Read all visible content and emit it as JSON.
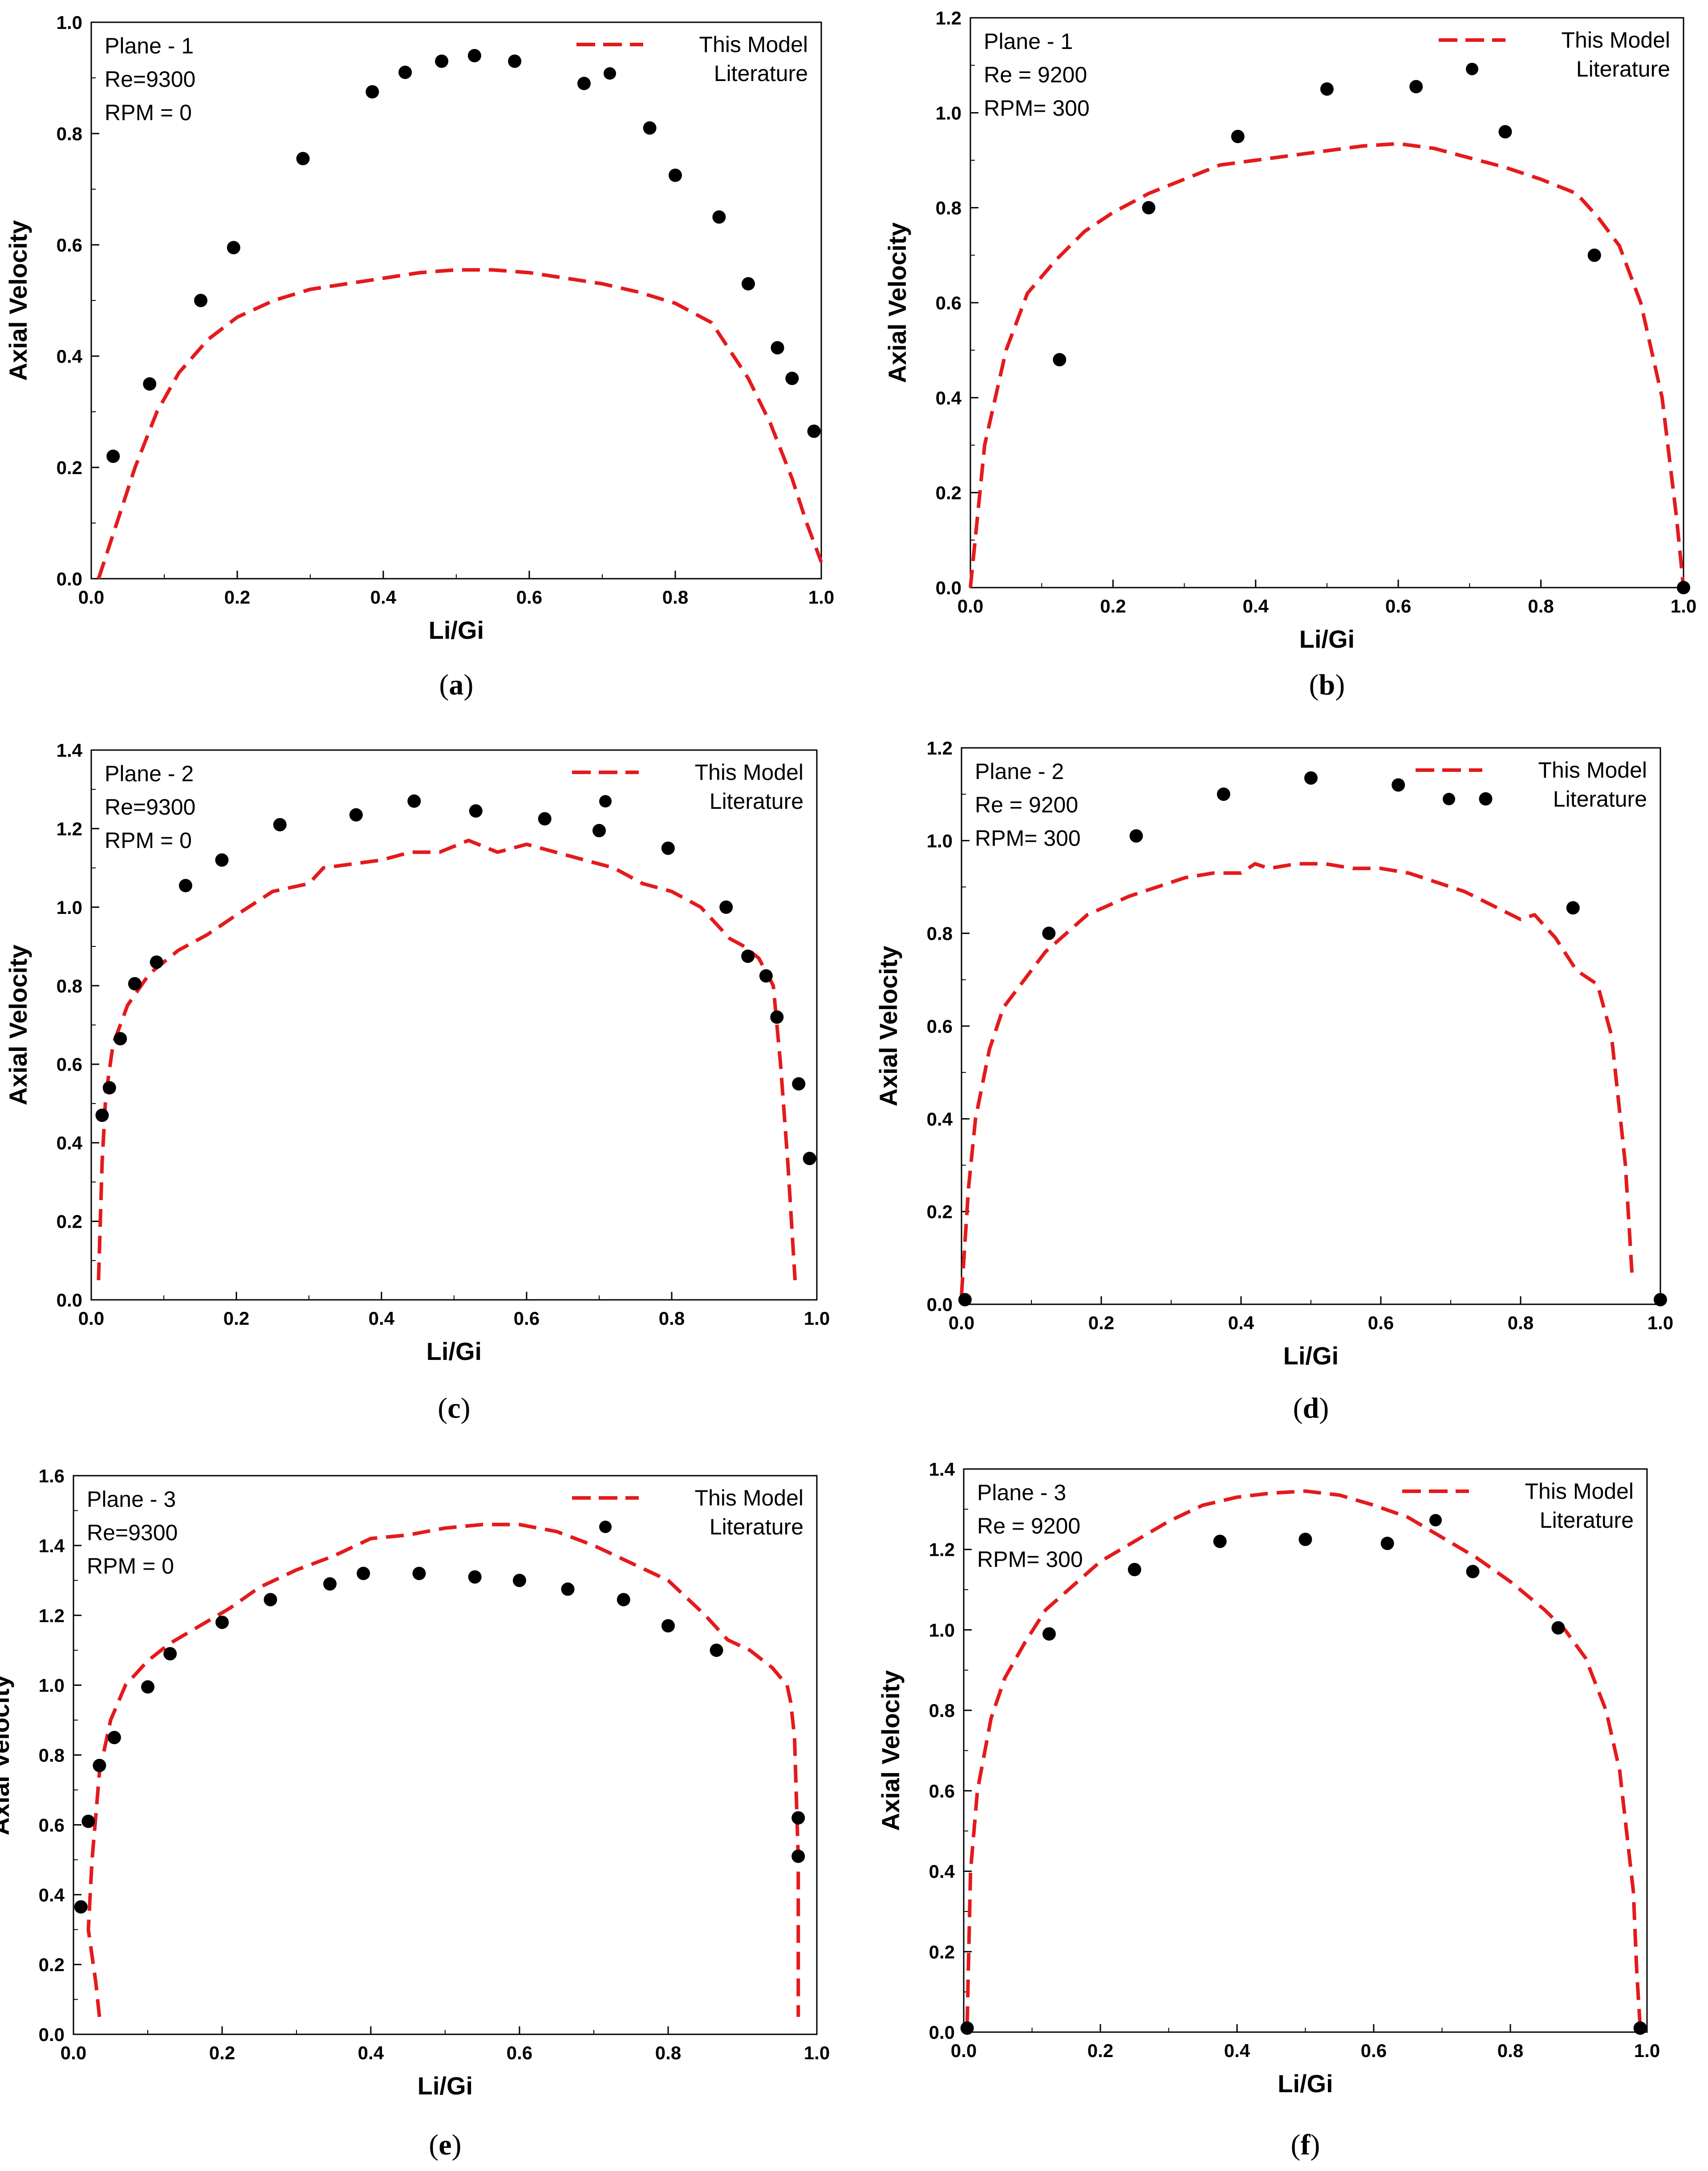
{
  "figure": {
    "legend": {
      "model_label": "This Model",
      "literature_label": "Literature"
    },
    "colors": {
      "model_line": "#e41a1c",
      "literature_marker": "#000000",
      "axes": "#000000"
    }
  },
  "chart_data": [
    {
      "id": "a",
      "caption": "a",
      "type": "line",
      "title": "",
      "xlabel": "Li/Gi",
      "ylabel": "Axial Velocity",
      "xlim": [
        0.0,
        1.0
      ],
      "ylim": [
        0.0,
        1.0
      ],
      "xticks": [
        "0.0",
        "0.2",
        "0.4",
        "0.6",
        "0.8",
        "1.0"
      ],
      "yticks": [
        "0.0",
        "0.2",
        "0.4",
        "0.6",
        "0.8",
        "1.0"
      ],
      "annotations": [
        "Plane - 1",
        "Re=9300",
        "RPM = 0"
      ],
      "legend_position": "top-right",
      "series": [
        {
          "name": "This Model",
          "style": "dashed-line",
          "x": [
            0.01,
            0.03,
            0.06,
            0.09,
            0.12,
            0.16,
            0.2,
            0.25,
            0.3,
            0.35,
            0.4,
            0.45,
            0.5,
            0.55,
            0.6,
            0.65,
            0.7,
            0.75,
            0.8,
            0.85,
            0.9,
            0.93,
            0.96,
            0.98,
            1.0
          ],
          "y": [
            0.0,
            0.08,
            0.2,
            0.3,
            0.37,
            0.43,
            0.47,
            0.5,
            0.52,
            0.53,
            0.54,
            0.55,
            0.555,
            0.555,
            0.55,
            0.54,
            0.53,
            0.515,
            0.495,
            0.46,
            0.36,
            0.28,
            0.18,
            0.1,
            0.03
          ]
        },
        {
          "name": "Literature",
          "style": "markers",
          "x": [
            0.03,
            0.08,
            0.15,
            0.195,
            0.29,
            0.385,
            0.43,
            0.48,
            0.525,
            0.58,
            0.675,
            0.765,
            0.8,
            0.86,
            0.9,
            0.94,
            0.96,
            0.99
          ],
          "y": [
            0.22,
            0.35,
            0.5,
            0.595,
            0.755,
            0.875,
            0.91,
            0.93,
            0.94,
            0.93,
            0.89,
            0.81,
            0.725,
            0.65,
            0.53,
            0.415,
            0.36,
            0.265
          ]
        }
      ]
    },
    {
      "id": "b",
      "caption": "b",
      "type": "line",
      "title": "",
      "xlabel": "Li/Gi",
      "ylabel": "Axial Velocity",
      "xlim": [
        0.0,
        1.0
      ],
      "ylim": [
        0.0,
        1.2
      ],
      "xticks": [
        "0.0",
        "0.2",
        "0.4",
        "0.6",
        "0.8",
        "1.0"
      ],
      "yticks": [
        "0.0",
        "0.2",
        "0.4",
        "0.6",
        "0.8",
        "1.0",
        "1.2"
      ],
      "annotations": [
        "Plane - 1",
        "Re = 9200",
        "RPM= 300"
      ],
      "legend_position": "top-right",
      "series": [
        {
          "name": "This Model",
          "style": "dashed-line",
          "x": [
            0.0,
            0.02,
            0.05,
            0.08,
            0.12,
            0.16,
            0.2,
            0.25,
            0.3,
            0.35,
            0.4,
            0.45,
            0.5,
            0.55,
            0.6,
            0.65,
            0.7,
            0.75,
            0.8,
            0.85,
            0.88,
            0.91,
            0.94,
            0.97,
            0.99,
            1.0
          ],
          "y": [
            0.0,
            0.3,
            0.5,
            0.62,
            0.69,
            0.75,
            0.79,
            0.83,
            0.86,
            0.89,
            0.9,
            0.91,
            0.92,
            0.93,
            0.935,
            0.925,
            0.905,
            0.885,
            0.86,
            0.83,
            0.78,
            0.72,
            0.6,
            0.4,
            0.15,
            0.0
          ]
        },
        {
          "name": "Literature",
          "style": "markers",
          "x": [
            0.125,
            0.25,
            0.375,
            0.5,
            0.625,
            0.75,
            0.875,
            1.0
          ],
          "y": [
            0.48,
            0.8,
            0.95,
            1.05,
            1.055,
            0.96,
            0.7,
            0.0
          ]
        }
      ]
    },
    {
      "id": "c",
      "caption": "c",
      "type": "line",
      "title": "",
      "xlabel": "Li/Gi",
      "ylabel": "Axial Velocity",
      "xlim": [
        0.0,
        1.0
      ],
      "ylim": [
        0.0,
        1.4
      ],
      "xticks": [
        "0.0",
        "0.2",
        "0.4",
        "0.6",
        "0.8",
        "1.0"
      ],
      "yticks": [
        "0.0",
        "0.2",
        "0.4",
        "0.6",
        "0.8",
        "1.0",
        "1.2",
        "1.4"
      ],
      "annotations": [
        "Plane - 2",
        "Re=9300",
        "RPM = 0"
      ],
      "legend_position": "top-right",
      "series": [
        {
          "name": "This Model",
          "style": "dashed-line",
          "x": [
            0.01,
            0.015,
            0.02,
            0.03,
            0.05,
            0.08,
            0.12,
            0.16,
            0.2,
            0.25,
            0.3,
            0.32,
            0.36,
            0.4,
            0.44,
            0.48,
            0.52,
            0.56,
            0.6,
            0.64,
            0.68,
            0.72,
            0.76,
            0.8,
            0.84,
            0.88,
            0.9,
            0.92,
            0.94,
            0.95,
            0.96,
            0.97
          ],
          "y": [
            0.05,
            0.35,
            0.52,
            0.65,
            0.75,
            0.83,
            0.89,
            0.93,
            0.98,
            1.04,
            1.06,
            1.1,
            1.11,
            1.12,
            1.14,
            1.14,
            1.17,
            1.14,
            1.16,
            1.14,
            1.12,
            1.1,
            1.06,
            1.04,
            1.0,
            0.92,
            0.9,
            0.87,
            0.8,
            0.6,
            0.35,
            0.05
          ]
        },
        {
          "name": "Literature",
          "style": "markers",
          "x": [
            0.015,
            0.025,
            0.04,
            0.06,
            0.09,
            0.13,
            0.18,
            0.26,
            0.365,
            0.445,
            0.53,
            0.625,
            0.7,
            0.795,
            0.875,
            0.905,
            0.93,
            0.945,
            0.975,
            0.99
          ],
          "y": [
            0.47,
            0.54,
            0.665,
            0.805,
            0.86,
            1.055,
            1.12,
            1.21,
            1.235,
            1.27,
            1.245,
            1.225,
            1.195,
            1.15,
            1.0,
            0.875,
            0.825,
            0.72,
            0.55,
            0.36
          ]
        }
      ]
    },
    {
      "id": "d",
      "caption": "d",
      "type": "line",
      "title": "",
      "xlabel": "Li/Gi",
      "ylabel": "Axial Velocity",
      "xlim": [
        0.0,
        1.0
      ],
      "ylim": [
        0.0,
        1.2
      ],
      "xticks": [
        "0.0",
        "0.2",
        "0.4",
        "0.6",
        "0.8",
        "1.0"
      ],
      "yticks": [
        "0.0",
        "0.2",
        "0.4",
        "0.6",
        "0.8",
        "1.0",
        "1.2"
      ],
      "annotations": [
        "Plane - 2",
        "Re = 9200",
        "RPM= 300"
      ],
      "legend_position": "top-right",
      "series": [
        {
          "name": "This Model",
          "style": "dashed-line",
          "x": [
            0.0,
            0.01,
            0.02,
            0.04,
            0.06,
            0.09,
            0.12,
            0.15,
            0.18,
            0.21,
            0.24,
            0.28,
            0.32,
            0.36,
            0.4,
            0.42,
            0.44,
            0.48,
            0.52,
            0.56,
            0.6,
            0.64,
            0.68,
            0.72,
            0.76,
            0.8,
            0.82,
            0.85,
            0.88,
            0.91,
            0.93,
            0.95,
            0.96
          ],
          "y": [
            0.02,
            0.25,
            0.4,
            0.55,
            0.64,
            0.7,
            0.76,
            0.8,
            0.84,
            0.86,
            0.88,
            0.9,
            0.92,
            0.93,
            0.93,
            0.95,
            0.94,
            0.95,
            0.95,
            0.94,
            0.94,
            0.93,
            0.91,
            0.89,
            0.86,
            0.83,
            0.84,
            0.79,
            0.72,
            0.69,
            0.58,
            0.3,
            0.05
          ]
        },
        {
          "name": "Literature",
          "style": "markers",
          "x": [
            0.005,
            0.125,
            0.25,
            0.375,
            0.5,
            0.625,
            0.75,
            0.875,
            1.0
          ],
          "y": [
            0.01,
            0.8,
            1.01,
            1.1,
            1.135,
            1.12,
            1.09,
            0.855,
            0.01
          ]
        }
      ]
    },
    {
      "id": "e",
      "caption": "e",
      "type": "line",
      "title": "",
      "xlabel": "Li/Gi",
      "ylabel": "Axial Velocity",
      "xlim": [
        0.0,
        1.0
      ],
      "ylim": [
        0.0,
        1.6
      ],
      "xticks": [
        "0.0",
        "0.2",
        "0.4",
        "0.6",
        "0.8",
        "1.0"
      ],
      "yticks": [
        "0.0",
        "0.2",
        "0.4",
        "0.6",
        "0.8",
        "1.0",
        "1.2",
        "1.4",
        "1.6"
      ],
      "annotations": [
        "Plane - 3",
        "Re=9300",
        "RPM = 0"
      ],
      "legend_position": "top-right",
      "series": [
        {
          "name": "This Model",
          "style": "dashed-line",
          "x": [
            0.035,
            0.03,
            0.02,
            0.025,
            0.035,
            0.05,
            0.07,
            0.1,
            0.13,
            0.17,
            0.21,
            0.25,
            0.3,
            0.35,
            0.4,
            0.45,
            0.5,
            0.55,
            0.6,
            0.65,
            0.7,
            0.75,
            0.8,
            0.85,
            0.88,
            0.91,
            0.94,
            0.96,
            0.965,
            0.97,
            0.975,
            0.975
          ],
          "y": [
            0.05,
            0.15,
            0.3,
            0.5,
            0.75,
            0.9,
            1.0,
            1.07,
            1.12,
            1.17,
            1.22,
            1.28,
            1.33,
            1.37,
            1.42,
            1.43,
            1.45,
            1.46,
            1.46,
            1.44,
            1.4,
            1.35,
            1.3,
            1.2,
            1.13,
            1.1,
            1.05,
            1.0,
            0.95,
            0.85,
            0.5,
            0.05
          ]
        },
        {
          "name": "Literature",
          "style": "markers",
          "x": [
            0.01,
            0.02,
            0.035,
            0.055,
            0.1,
            0.13,
            0.2,
            0.265,
            0.345,
            0.39,
            0.465,
            0.54,
            0.6,
            0.665,
            0.74,
            0.8,
            0.865,
            0.975,
            0.975
          ],
          "y": [
            0.365,
            0.61,
            0.77,
            0.85,
            0.995,
            1.09,
            1.18,
            1.245,
            1.29,
            1.32,
            1.32,
            1.31,
            1.3,
            1.275,
            1.245,
            1.17,
            1.1,
            0.62,
            0.51
          ]
        }
      ]
    },
    {
      "id": "f",
      "caption": "f",
      "type": "line",
      "title": "",
      "xlabel": "Li/Gi",
      "ylabel": "Axial Velocity",
      "xlim": [
        0.0,
        1.0
      ],
      "ylim": [
        0.0,
        1.4
      ],
      "xticks": [
        "0.0",
        "0.2",
        "0.4",
        "0.6",
        "0.8",
        "1.0"
      ],
      "yticks": [
        "0.0",
        "0.2",
        "0.4",
        "0.6",
        "0.8",
        "1.0",
        "1.2",
        "1.4"
      ],
      "annotations": [
        "Plane - 3",
        "Re = 9200",
        "RPM= 300"
      ],
      "legend_position": "top-right",
      "series": [
        {
          "name": "This Model",
          "style": "dashed-line",
          "x": [
            0.005,
            0.01,
            0.02,
            0.04,
            0.06,
            0.09,
            0.12,
            0.16,
            0.2,
            0.25,
            0.3,
            0.35,
            0.4,
            0.45,
            0.5,
            0.55,
            0.6,
            0.65,
            0.7,
            0.75,
            0.8,
            0.85,
            0.88,
            0.91,
            0.94,
            0.96,
            0.98,
            0.985,
            0.99
          ],
          "y": [
            0.02,
            0.4,
            0.6,
            0.78,
            0.88,
            0.97,
            1.05,
            1.11,
            1.17,
            1.22,
            1.27,
            1.31,
            1.33,
            1.34,
            1.345,
            1.335,
            1.31,
            1.28,
            1.23,
            1.18,
            1.12,
            1.05,
            1.0,
            0.93,
            0.8,
            0.65,
            0.35,
            0.15,
            0.01
          ]
        },
        {
          "name": "Literature",
          "style": "markers",
          "x": [
            0.005,
            0.125,
            0.25,
            0.375,
            0.5,
            0.62,
            0.745,
            0.87,
            0.99
          ],
          "y": [
            0.01,
            0.99,
            1.15,
            1.22,
            1.225,
            1.215,
            1.145,
            1.005,
            0.01
          ]
        }
      ]
    }
  ]
}
